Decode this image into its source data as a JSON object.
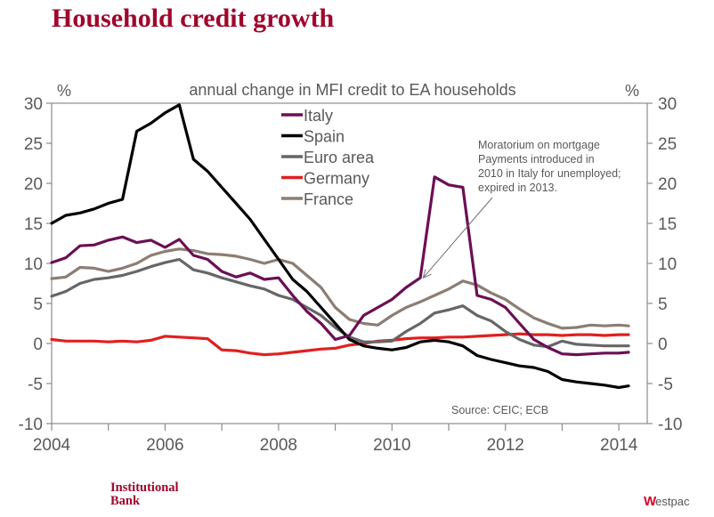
{
  "page": {
    "title": "Household credit growth",
    "footer_left_line1": "Institutional",
    "footer_left_line2": "Bank",
    "footer_right_mark": "W",
    "footer_right_text": "estpac",
    "brand_color": "#a0062c"
  },
  "chart_data": {
    "type": "line",
    "title": "annual change in MFI credit to EA households",
    "ylabel_left": "%",
    "ylabel_right": "%",
    "xlabel": "",
    "ylim": [
      -10,
      30
    ],
    "yticks": [
      30,
      25,
      20,
      15,
      10,
      5,
      0,
      -5,
      -10
    ],
    "ytick_labels": [
      "30",
      "25",
      "20",
      "15",
      "10",
      "5",
      "0",
      "-5",
      "-10"
    ],
    "xlim": [
      2004,
      2014.5
    ],
    "xticks": [
      2004,
      2005,
      2006,
      2007,
      2008,
      2009,
      2010,
      2011,
      2012,
      2013,
      2014
    ],
    "xtick_labels": [
      "2004",
      "",
      "2006",
      "",
      "2008",
      "",
      "2010",
      "",
      "2012",
      "",
      "2014"
    ],
    "grid": false,
    "legend_position": "top-center",
    "annotation": {
      "lines": [
        "Moratorium on mortgage",
        "Payments introduced in",
        "2010 in Italy for unemployed;",
        "expired in 2013."
      ],
      "arrow_to": [
        2010.55,
        8.2
      ]
    },
    "source": "Source: CEIC; ECB",
    "x": [
      2004.0,
      2004.25,
      2004.5,
      2004.75,
      2005.0,
      2005.25,
      2005.5,
      2005.75,
      2006.0,
      2006.25,
      2006.5,
      2006.75,
      2007.0,
      2007.25,
      2007.5,
      2007.75,
      2008.0,
      2008.25,
      2008.5,
      2008.75,
      2009.0,
      2009.25,
      2009.5,
      2009.75,
      2010.0,
      2010.25,
      2010.5,
      2010.75,
      2011.0,
      2011.25,
      2011.5,
      2011.75,
      2012.0,
      2012.25,
      2012.5,
      2012.75,
      2013.0,
      2013.25,
      2013.5,
      2013.75,
      2014.0,
      2014.17
    ],
    "series": [
      {
        "name": "Italy",
        "color": "#6b0f55",
        "values": [
          10.1,
          10.7,
          12.2,
          12.3,
          12.9,
          13.3,
          12.6,
          12.9,
          12.0,
          13.0,
          11.0,
          10.5,
          9.0,
          8.3,
          8.8,
          8.0,
          8.2,
          6.0,
          4.0,
          2.5,
          0.5,
          1.0,
          3.5,
          4.5,
          5.5,
          7.0,
          8.2,
          20.8,
          19.8,
          19.5,
          6.0,
          5.5,
          4.5,
          2.5,
          0.5,
          -0.5,
          -1.3,
          -1.4,
          -1.3,
          -1.2,
          -1.2,
          -1.1
        ]
      },
      {
        "name": "Spain",
        "color": "#000000",
        "values": [
          15.0,
          16.0,
          16.3,
          16.8,
          17.5,
          18.0,
          26.5,
          27.5,
          28.8,
          29.8,
          23.0,
          21.5,
          19.5,
          17.5,
          15.5,
          13.0,
          10.5,
          8.0,
          6.5,
          4.5,
          2.5,
          0.5,
          -0.3,
          -0.6,
          -0.8,
          -0.5,
          0.2,
          0.4,
          0.2,
          -0.3,
          -1.5,
          -2.0,
          -2.4,
          -2.8,
          -3.0,
          -3.5,
          -4.5,
          -4.8,
          -5.0,
          -5.2,
          -5.5,
          -5.3
        ]
      },
      {
        "name": "Euro area",
        "color": "#666666",
        "values": [
          5.9,
          6.5,
          7.5,
          8.0,
          8.2,
          8.5,
          9.0,
          9.6,
          10.1,
          10.5,
          9.2,
          8.8,
          8.2,
          7.7,
          7.2,
          6.8,
          6.0,
          5.5,
          4.5,
          3.5,
          2.0,
          0.8,
          0.2,
          0.2,
          0.3,
          1.5,
          2.5,
          3.8,
          4.2,
          4.7,
          3.5,
          2.8,
          1.5,
          0.5,
          -0.2,
          -0.4,
          0.3,
          -0.1,
          -0.2,
          -0.3,
          -0.3,
          -0.3
        ]
      },
      {
        "name": "Germany",
        "color": "#e0201f",
        "values": [
          0.5,
          0.3,
          0.3,
          0.3,
          0.2,
          0.3,
          0.2,
          0.4,
          0.9,
          0.8,
          0.7,
          0.6,
          -0.8,
          -0.9,
          -1.2,
          -1.4,
          -1.3,
          -1.1,
          -0.9,
          -0.7,
          -0.6,
          -0.2,
          0.0,
          0.3,
          0.4,
          0.6,
          0.7,
          0.7,
          0.8,
          0.8,
          0.9,
          1.0,
          1.1,
          1.2,
          1.1,
          1.1,
          1.0,
          1.1,
          1.1,
          1.0,
          1.1,
          1.1
        ]
      },
      {
        "name": "France",
        "color": "#8c7d73",
        "values": [
          8.1,
          8.3,
          9.5,
          9.4,
          9.0,
          9.4,
          10.0,
          11.0,
          11.5,
          11.8,
          11.6,
          11.2,
          11.1,
          10.9,
          10.5,
          10.0,
          10.5,
          10.0,
          8.5,
          7.0,
          4.5,
          3.0,
          2.5,
          2.3,
          3.5,
          4.5,
          5.2,
          6.0,
          6.8,
          7.8,
          7.3,
          6.3,
          5.5,
          4.3,
          3.2,
          2.5,
          1.9,
          2.0,
          2.3,
          2.2,
          2.3,
          2.2
        ]
      }
    ]
  }
}
